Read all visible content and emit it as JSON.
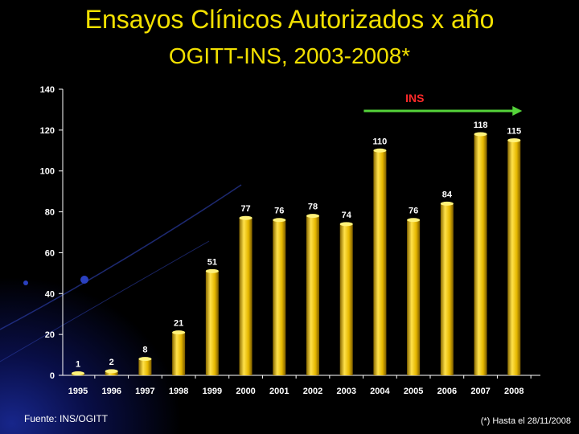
{
  "title": "Ensayos Clínicos Autorizados x año",
  "subtitle": "OGITT-INS, 2003-2008*",
  "source": "Fuente: INS/OGITT",
  "footnote": "(*) Hasta el 28/11/2008",
  "colors": {
    "title": "#f2e000",
    "bar": "#e6b800",
    "arrow": "#55d43a",
    "ins_label": "#ff2a2a"
  },
  "chart_data": {
    "type": "bar",
    "categories": [
      "1995",
      "1996",
      "1997",
      "1998",
      "1999",
      "2000",
      "2001",
      "2002",
      "2003",
      "2004",
      "2005",
      "2006",
      "2007",
      "2008"
    ],
    "values": [
      1,
      2,
      8,
      21,
      51,
      77,
      76,
      78,
      74,
      110,
      76,
      84,
      118,
      115
    ],
    "ylim": [
      0,
      140
    ],
    "yticks": [
      0,
      20,
      40,
      60,
      80,
      100,
      120,
      140
    ],
    "grid": false,
    "annotation": {
      "label": "INS",
      "from": "2004",
      "to": "2008"
    }
  }
}
